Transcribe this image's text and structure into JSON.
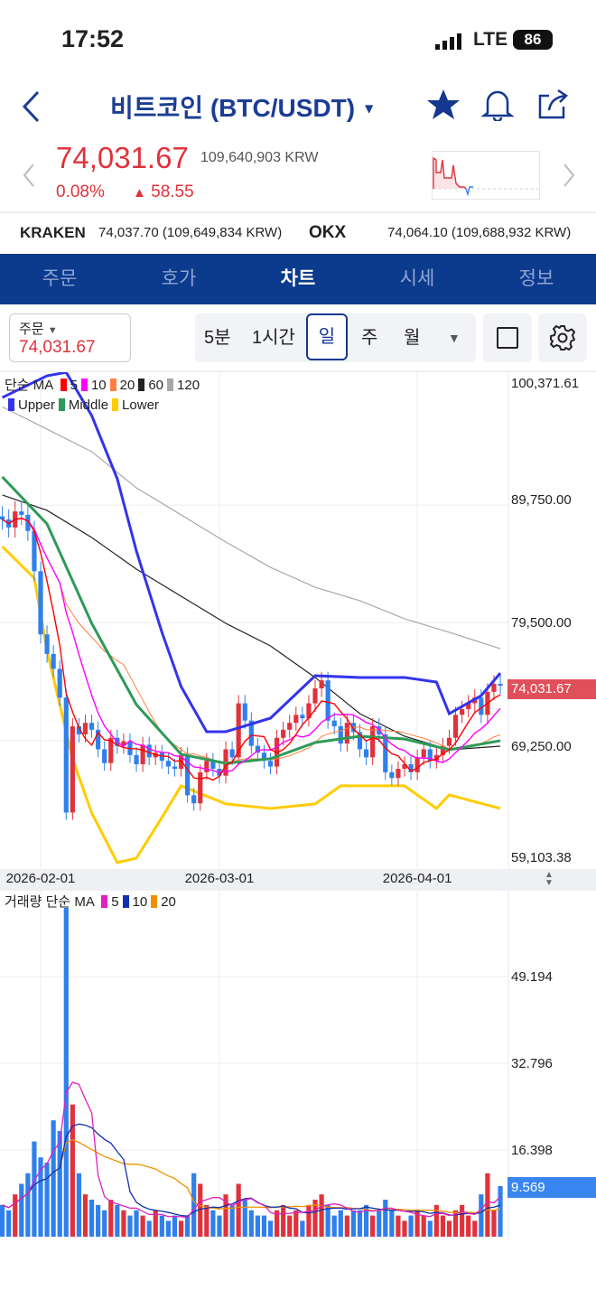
{
  "status": {
    "time": "17:52",
    "network": "LTE",
    "battery": "86"
  },
  "header": {
    "title": "비트코인 (BTC/USDT)",
    "icons": [
      "back-icon",
      "star-icon",
      "bell-icon",
      "share-icon"
    ]
  },
  "price": {
    "last": "74,031.67",
    "krw": "109,640,903 KRW",
    "change_pct": "0.08%",
    "change_abs": "58.55",
    "up_color": "#e0323c"
  },
  "exchanges": [
    {
      "name": "KRAKEN",
      "value": "74,037.70 (109,649,834 KRW)"
    },
    {
      "name": "OKX",
      "value": "74,064.10 (109,688,932 KRW)"
    }
  ],
  "tabs": [
    {
      "label": "주문"
    },
    {
      "label": "호가"
    },
    {
      "label": "차트",
      "active": true
    },
    {
      "label": "시세"
    },
    {
      "label": "정보"
    }
  ],
  "toolbar": {
    "order_label": "주문",
    "order_price": "74,031.67",
    "intervals": [
      "5분",
      "1시간",
      "일",
      "주",
      "월"
    ],
    "selected": "일"
  },
  "legend": {
    "ma_label": "단순 MA",
    "ma": [
      {
        "label": "5",
        "color": "#ff0000"
      },
      {
        "label": "10",
        "color": "#ff00ff"
      },
      {
        "label": "20",
        "color": "#ff7f3f"
      },
      {
        "label": "60",
        "color": "#222222"
      },
      {
        "label": "120",
        "color": "#a8a8a8"
      }
    ],
    "bb": [
      {
        "label": "Upper",
        "color": "#3333ee"
      },
      {
        "label": "Middle",
        "color": "#2e9a5a"
      },
      {
        "label": "Lower",
        "color": "#ffcc00"
      }
    ],
    "vol_label": "거래량 단순 MA",
    "vol_ma": [
      {
        "label": "5",
        "color": "#e020c0"
      },
      {
        "label": "10",
        "color": "#1030b0"
      },
      {
        "label": "20",
        "color": "#f09000"
      }
    ]
  },
  "chart_data": {
    "type": "candlestick",
    "x_ticks": [
      "2026-02-01",
      "2026-03-01",
      "2026-04-01"
    ],
    "y_ticks": [
      "100,371.61",
      "89,750.00",
      "79,500.00",
      "69,250.00",
      "59,103.38"
    ],
    "ylim": [
      59103.38,
      100371.61
    ],
    "current_price_tag": "74,031.67",
    "vol_ticks": [
      "49.194",
      "32.796",
      "16.398"
    ],
    "current_volume_tag": "9.569",
    "up_color": "#e0323c",
    "down_color": "#2f80ed",
    "candles": [
      [
        "2026-01-26",
        88500,
        6
      ],
      [
        "2026-01-27",
        87800,
        5
      ],
      [
        "2026-01-28",
        89200,
        8
      ],
      [
        "2026-01-29",
        88900,
        10
      ],
      [
        "2026-01-30",
        87500,
        12
      ],
      [
        "2026-01-31",
        84000,
        18
      ],
      [
        "2026-02-01",
        78500,
        15
      ],
      [
        "2026-02-02",
        76800,
        14
      ],
      [
        "2026-02-03",
        75500,
        22
      ],
      [
        "2026-02-04",
        73000,
        20
      ],
      [
        "2026-02-05",
        63000,
        65
      ],
      [
        "2026-02-06",
        70500,
        25
      ],
      [
        "2026-02-07",
        69800,
        12
      ],
      [
        "2026-02-08",
        70800,
        8
      ],
      [
        "2026-02-09",
        70200,
        7
      ],
      [
        "2026-02-10",
        68500,
        6
      ],
      [
        "2026-02-11",
        67300,
        5
      ],
      [
        "2026-02-12",
        69500,
        7
      ],
      [
        "2026-02-13",
        68800,
        6
      ],
      [
        "2026-02-14",
        69200,
        5
      ],
      [
        "2026-02-15",
        68000,
        4
      ],
      [
        "2026-02-16",
        67200,
        5
      ],
      [
        "2026-02-17",
        68900,
        4
      ],
      [
        "2026-02-18",
        67800,
        3
      ],
      [
        "2026-02-19",
        68200,
        5
      ],
      [
        "2026-02-20",
        67500,
        4
      ],
      [
        "2026-02-21",
        67000,
        3
      ],
      [
        "2026-02-22",
        66800,
        4
      ],
      [
        "2026-02-23",
        68000,
        3
      ],
      [
        "2026-02-24",
        64500,
        4
      ],
      [
        "2026-02-25",
        63800,
        12
      ],
      [
        "2026-02-26",
        66500,
        10
      ],
      [
        "2026-02-27",
        67500,
        6
      ],
      [
        "2026-02-28",
        66800,
        5
      ],
      [
        "2026-03-01",
        66200,
        4
      ],
      [
        "2026-03-02",
        68500,
        8
      ],
      [
        "2026-03-03",
        67800,
        6
      ],
      [
        "2026-03-04",
        72500,
        10
      ],
      [
        "2026-03-05",
        71000,
        7
      ],
      [
        "2026-03-06",
        68800,
        5
      ],
      [
        "2026-03-07",
        68200,
        4
      ],
      [
        "2026-03-08",
        67500,
        4
      ],
      [
        "2026-03-09",
        67000,
        3
      ],
      [
        "2026-03-10",
        69500,
        5
      ],
      [
        "2026-03-11",
        70200,
        6
      ],
      [
        "2026-03-12",
        70800,
        4
      ],
      [
        "2026-03-13",
        71500,
        5
      ],
      [
        "2026-03-14",
        71200,
        3
      ],
      [
        "2026-03-15",
        72500,
        6
      ],
      [
        "2026-03-16",
        73800,
        7
      ],
      [
        "2026-03-17",
        74500,
        8
      ],
      [
        "2026-03-18",
        71000,
        6
      ],
      [
        "2026-03-19",
        70500,
        4
      ],
      [
        "2026-03-20",
        69000,
        5
      ],
      [
        "2026-03-21",
        70800,
        4
      ],
      [
        "2026-03-22",
        70000,
        5
      ],
      [
        "2026-03-23",
        68500,
        5
      ],
      [
        "2026-03-24",
        67800,
        6
      ],
      [
        "2026-03-25",
        70500,
        4
      ],
      [
        "2026-03-26",
        69800,
        5
      ],
      [
        "2026-03-27",
        66500,
        7
      ],
      [
        "2026-03-28",
        66000,
        5
      ],
      [
        "2026-03-29",
        66800,
        4
      ],
      [
        "2026-03-30",
        67200,
        3
      ],
      [
        "2026-03-31",
        66500,
        4
      ],
      [
        "2026-04-01",
        67800,
        5
      ],
      [
        "2026-04-02",
        68500,
        4
      ],
      [
        "2026-04-03",
        67500,
        3
      ],
      [
        "2026-04-04",
        68000,
        6
      ],
      [
        "2026-04-05",
        68800,
        4
      ],
      [
        "2026-04-06",
        69500,
        3
      ],
      [
        "2026-04-07",
        71500,
        5
      ],
      [
        "2026-04-08",
        72000,
        6
      ],
      [
        "2026-04-09",
        72500,
        4
      ],
      [
        "2026-04-10",
        73000,
        3
      ],
      [
        "2026-04-11",
        71500,
        8
      ],
      [
        "2026-04-12",
        73500,
        12
      ],
      [
        "2026-04-13",
        74200,
        5
      ],
      [
        "2026-04-14",
        74031.67,
        9.569
      ]
    ],
    "lines": {
      "ma120": [
        [
          "2026-01-26",
          98300
        ],
        [
          "2026-02-02",
          96360
        ],
        [
          "2026-02-09",
          94400
        ],
        [
          "2026-02-16",
          91250
        ],
        [
          "2026-02-23",
          88900
        ],
        [
          "2026-03-02",
          86540
        ],
        [
          "2026-03-09",
          84330
        ],
        [
          "2026-03-16",
          82600
        ],
        [
          "2026-03-23",
          81430
        ],
        [
          "2026-03-30",
          79860
        ],
        [
          "2026-04-06",
          78680
        ],
        [
          "2026-04-14",
          77260
        ]
      ],
      "ma60": [
        [
          "2026-01-26",
          90630
        ],
        [
          "2026-02-02",
          89290
        ],
        [
          "2026-02-09",
          86930
        ],
        [
          "2026-02-16",
          84180
        ],
        [
          "2026-02-23",
          81820
        ],
        [
          "2026-03-02",
          79460
        ],
        [
          "2026-03-09",
          77500
        ],
        [
          "2026-03-16",
          74750
        ],
        [
          "2026-03-23",
          71600
        ],
        [
          "2026-03-30",
          69640
        ],
        [
          "2026-04-06",
          68460
        ],
        [
          "2026-04-14",
          68770
        ]
      ],
      "upper": [
        [
          "2026-01-26",
          99110
        ],
        [
          "2026-02-02",
          101000
        ],
        [
          "2026-02-05",
          101300
        ],
        [
          "2026-02-09",
          97540
        ],
        [
          "2026-02-13",
          92040
        ],
        [
          "2026-02-16",
          85750
        ],
        [
          "2026-02-20",
          78680
        ],
        [
          "2026-02-23",
          73960
        ],
        [
          "2026-02-27",
          70030
        ],
        [
          "2026-03-02",
          70030
        ],
        [
          "2026-03-09",
          71210
        ],
        [
          "2026-03-16",
          74900
        ],
        [
          "2026-03-23",
          74750
        ],
        [
          "2026-03-30",
          74750
        ],
        [
          "2026-04-04",
          74350
        ],
        [
          "2026-04-06",
          71600
        ],
        [
          "2026-04-11",
          73170
        ],
        [
          "2026-04-14",
          75130
        ]
      ],
      "middle": [
        [
          "2026-01-26",
          92200
        ],
        [
          "2026-02-02",
          88110
        ],
        [
          "2026-02-09",
          79460
        ],
        [
          "2026-02-16",
          72390
        ],
        [
          "2026-02-23",
          68070
        ],
        [
          "2026-03-02",
          67280
        ],
        [
          "2026-03-09",
          67680
        ],
        [
          "2026-03-16",
          69090
        ],
        [
          "2026-03-23",
          69640
        ],
        [
          "2026-03-30",
          69400
        ],
        [
          "2026-04-06",
          68460
        ],
        [
          "2026-04-14",
          69250
        ]
      ],
      "lower": [
        [
          "2026-01-26",
          86140
        ],
        [
          "2026-01-31",
          83400
        ],
        [
          "2026-02-02",
          77100
        ],
        [
          "2026-02-06",
          67680
        ],
        [
          "2026-02-09",
          62960
        ],
        [
          "2026-02-13",
          58640
        ],
        [
          "2026-02-16",
          59030
        ],
        [
          "2026-02-20",
          62570
        ],
        [
          "2026-02-23",
          65320
        ],
        [
          "2026-03-02",
          63750
        ],
        [
          "2026-03-09",
          63350
        ],
        [
          "2026-03-16",
          63750
        ],
        [
          "2026-03-20",
          65320
        ],
        [
          "2026-03-23",
          65320
        ],
        [
          "2026-03-30",
          65320
        ],
        [
          "2026-04-04",
          63350
        ],
        [
          "2026-04-06",
          64530
        ],
        [
          "2026-04-14",
          63350
        ]
      ]
    }
  }
}
